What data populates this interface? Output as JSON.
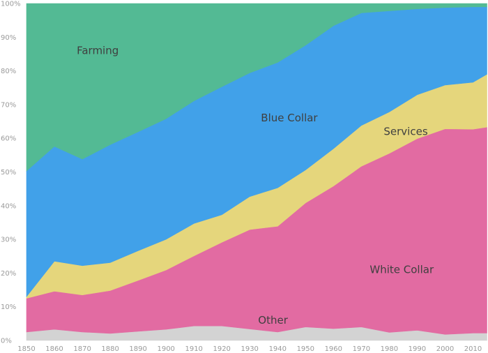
{
  "chart_data": {
    "type": "area",
    "stacked": true,
    "x": [
      1850,
      1860,
      1870,
      1880,
      1890,
      1900,
      1910,
      1920,
      1930,
      1940,
      1950,
      1960,
      1970,
      1980,
      1990,
      2000,
      2010,
      2015
    ],
    "x_ticks": [
      "1850",
      "1860",
      "1870",
      "1880",
      "1890",
      "1900",
      "1910",
      "1920",
      "1930",
      "1940",
      "1950",
      "1960",
      "1970",
      "1980",
      "1990",
      "2000",
      "2010"
    ],
    "ylim": [
      0,
      100
    ],
    "y_ticks": [
      "0%",
      "10%",
      "20%",
      "30%",
      "40%",
      "50%",
      "60%",
      "70%",
      "80%",
      "90%",
      "100%"
    ],
    "grid": false,
    "series": [
      {
        "name": "Other",
        "color": "#d3d3d3",
        "values": [
          2.5,
          3.3,
          2.5,
          2.1,
          2.7,
          3.3,
          4.3,
          4.3,
          3.4,
          2.5,
          4.0,
          3.5,
          4.0,
          2.4,
          3.0,
          1.8,
          2.2,
          2.2
        ]
      },
      {
        "name": "White Collar",
        "color": "#e26ba2",
        "values": [
          10.0,
          11.3,
          11.0,
          12.7,
          15.1,
          17.6,
          20.8,
          24.8,
          29.5,
          31.4,
          36.8,
          42.3,
          47.7,
          53.1,
          56.9,
          61.0,
          60.5,
          61.1
        ]
      },
      {
        "name": "Services",
        "color": "#e5d67c",
        "values": [
          0.5,
          8.9,
          8.7,
          8.3,
          8.8,
          9.1,
          9.6,
          8.2,
          9.8,
          11.4,
          9.8,
          11.1,
          12.1,
          12.3,
          13.0,
          13.0,
          13.9,
          15.7
        ]
      },
      {
        "name": "Blue Collar",
        "color": "#41a1e9",
        "values": [
          37.3,
          34.1,
          31.6,
          35.0,
          35.3,
          35.8,
          36.4,
          38.0,
          36.7,
          37.2,
          37.0,
          36.5,
          33.4,
          30.0,
          25.5,
          23.0,
          22.4,
          20.0
        ]
      },
      {
        "name": "Farming",
        "color": "#53ba94",
        "values": [
          49.7,
          42.4,
          46.2,
          41.9,
          38.1,
          34.2,
          28.9,
          24.7,
          20.6,
          17.5,
          12.4,
          6.6,
          2.8,
          2.2,
          1.6,
          1.2,
          1.0,
          1.0
        ]
      }
    ],
    "labels": [
      {
        "text": "Farming",
        "series": "Farming",
        "at_x": 1868,
        "at_y": 86
      },
      {
        "text": "Blue Collar",
        "series": "Blue Collar",
        "at_x": 1934,
        "at_y": 66
      },
      {
        "text": "Services",
        "series": "Services",
        "at_x": 1978,
        "at_y": 62
      },
      {
        "text": "White Collar",
        "series": "White Collar",
        "at_x": 1973,
        "at_y": 21
      },
      {
        "text": "Other",
        "series": "Other",
        "at_x": 1933,
        "at_y": 6
      }
    ]
  }
}
